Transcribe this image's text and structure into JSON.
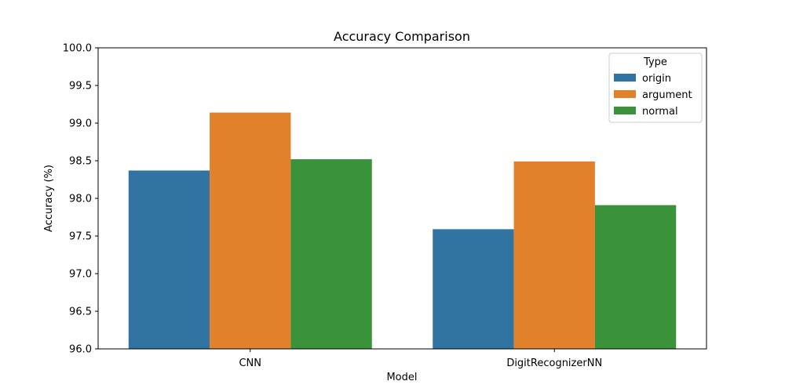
{
  "chart_data": {
    "type": "bar",
    "title": "Accuracy Comparison",
    "xlabel": "Model",
    "ylabel": "Accuracy (%)",
    "categories": [
      "CNN",
      "DigitRecognizerNN"
    ],
    "series": [
      {
        "name": "origin",
        "color": "#3274a1",
        "values": [
          98.37,
          97.59
        ]
      },
      {
        "name": "argument",
        "color": "#e1812c",
        "values": [
          99.14,
          98.49
        ]
      },
      {
        "name": "normal",
        "color": "#3a923a",
        "values": [
          98.52,
          97.91
        ]
      }
    ],
    "ylim": [
      96.0,
      100.0
    ],
    "yticks": [
      96.0,
      96.5,
      97.0,
      97.5,
      98.0,
      98.5,
      99.0,
      99.5,
      100.0
    ],
    "legend": {
      "title": "Type",
      "placement": "top-right"
    },
    "grid": false
  }
}
